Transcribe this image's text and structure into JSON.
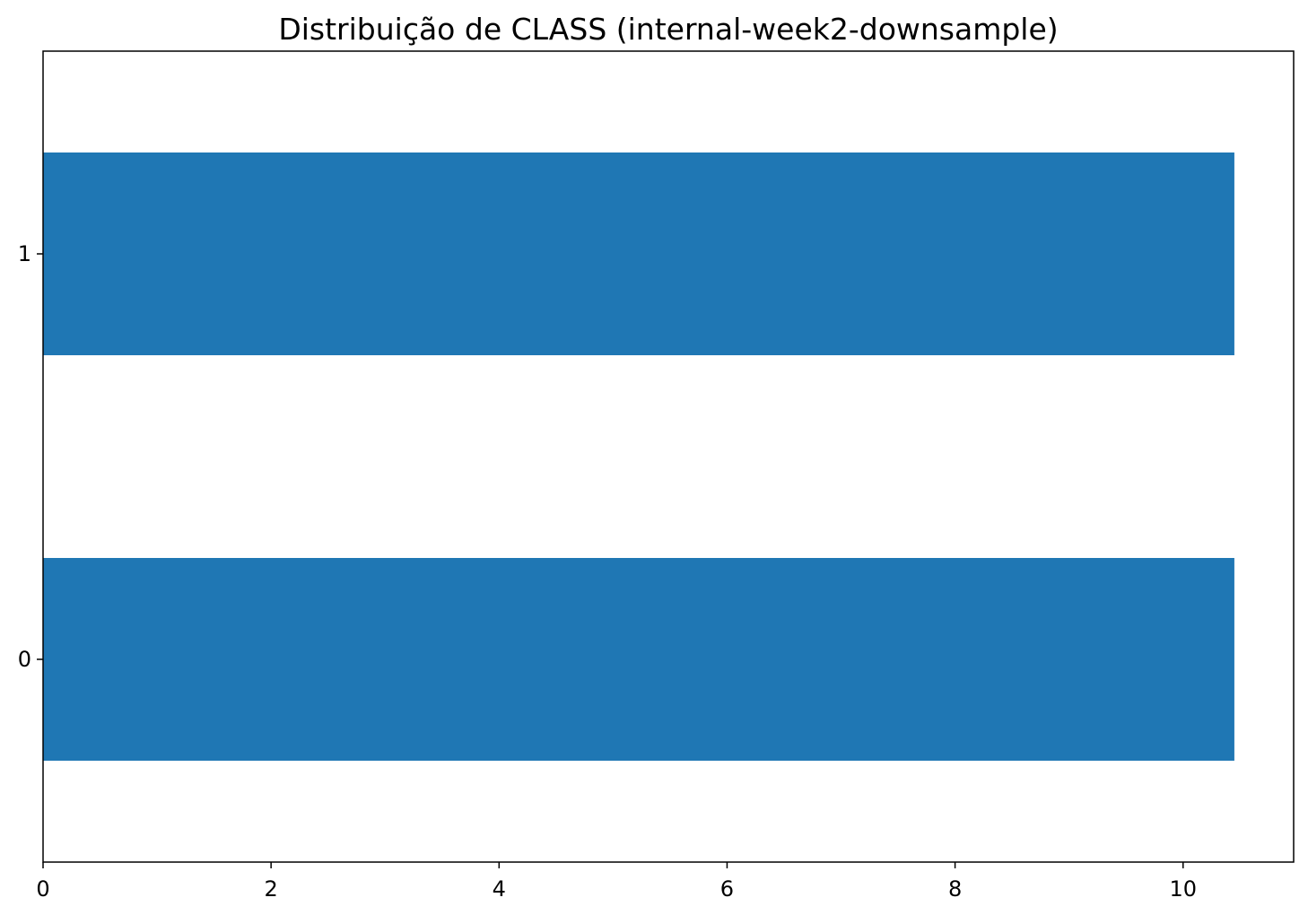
{
  "chart_data": {
    "type": "bar",
    "orientation": "horizontal",
    "title": "Distribuição de CLASS (internal-week2-downsample)",
    "xlabel": "",
    "ylabel": "",
    "categories": [
      "0",
      "1"
    ],
    "values": [
      10.45,
      10.45
    ],
    "xlim": [
      0,
      10.97
    ],
    "xticks": [
      0,
      2,
      4,
      6,
      8,
      10
    ],
    "xtick_labels": [
      "0",
      "2",
      "4",
      "6",
      "8",
      "10"
    ],
    "grid": false,
    "legend": "none",
    "bar_color": "#1f77b4"
  }
}
